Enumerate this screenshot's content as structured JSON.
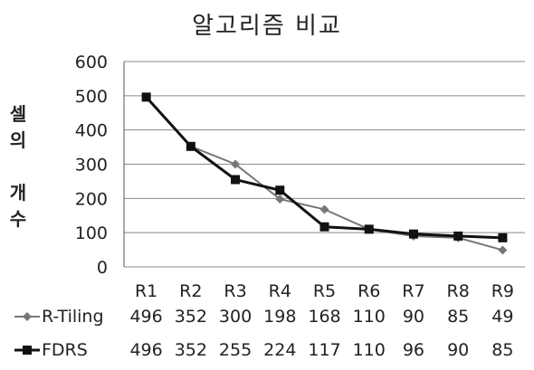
{
  "chart_data": {
    "type": "line",
    "title": "알고리즘 비교",
    "ylabel": "셀의 개수",
    "xlabel": "",
    "categories": [
      "R1",
      "R2",
      "R3",
      "R4",
      "R5",
      "R6",
      "R7",
      "R8",
      "R9"
    ],
    "ylim": [
      0,
      600
    ],
    "yticks": [
      0,
      100,
      200,
      300,
      400,
      500,
      600
    ],
    "grid": true,
    "legend": "data-table-left",
    "series": [
      {
        "name": "R-Tiling",
        "marker": "diamond",
        "color": "#777777",
        "values": [
          496,
          352,
          300,
          198,
          168,
          110,
          90,
          85,
          49
        ]
      },
      {
        "name": "FDRS",
        "marker": "square",
        "color": "#111111",
        "values": [
          496,
          352,
          255,
          224,
          117,
          110,
          96,
          90,
          85
        ]
      }
    ],
    "table_values": [
      [
        "496",
        "352",
        "300",
        "198",
        "168",
        "110",
        "90",
        "85",
        "49"
      ],
      [
        "496",
        "352",
        "255",
        "224",
        "117",
        "110",
        "96",
        "90",
        "85"
      ]
    ]
  }
}
